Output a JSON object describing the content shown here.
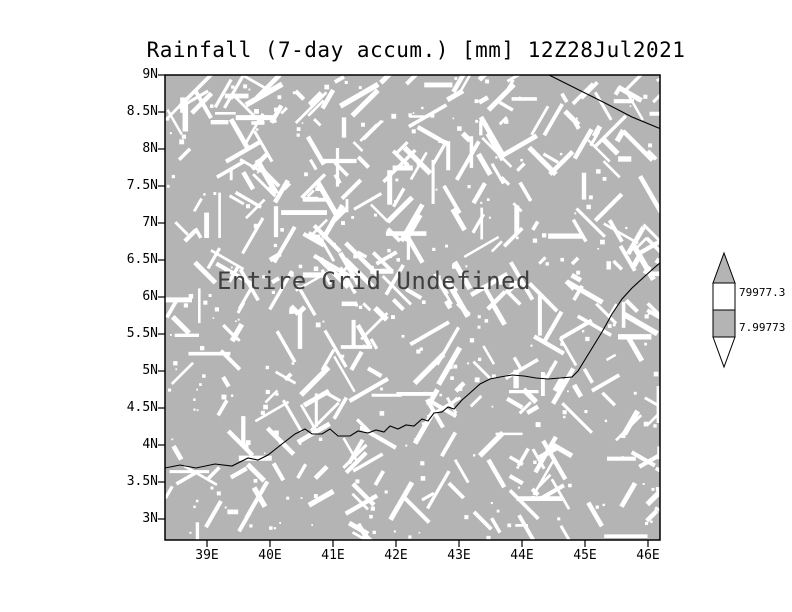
{
  "title": "Rainfall (7-day accum.) [mm] 12Z28Jul2021",
  "plot": {
    "undefined_label": "Entire Grid Undefined"
  },
  "axes": {
    "y_ticks": [
      "9N",
      "8.5N",
      "8N",
      "7.5N",
      "7N",
      "6.5N",
      "6N",
      "5.5N",
      "5N",
      "4.5N",
      "4N",
      "3.5N",
      "3N"
    ],
    "x_ticks": [
      "39E",
      "40E",
      "41E",
      "42E",
      "43E",
      "44E",
      "45E",
      "46E"
    ]
  },
  "colorbar": {
    "labels": [
      "79977.3",
      "7.99773"
    ]
  },
  "colors": {
    "grid_fill": "#b4b4b4",
    "speckle": "#ffffff",
    "coastline": "#000000",
    "undefined_text": "#3f3f3f"
  },
  "chart_data": {
    "type": "heatmap",
    "title": "Rainfall (7-day accum.) [mm] 12Z28Jul2021",
    "variable": "Rainfall (7-day accum.)",
    "units": "mm",
    "valid_time": "12Z28Jul2021",
    "status": "Entire Grid Undefined",
    "x_axis": {
      "ticks": [
        "39E",
        "40E",
        "41E",
        "42E",
        "43E",
        "44E",
        "45E",
        "46E"
      ]
    },
    "y_axis": {
      "ticks": [
        "9N",
        "8.5N",
        "8N",
        "7.5N",
        "7N",
        "6.5N",
        "6N",
        "5.5N",
        "5N",
        "4.5N",
        "4N",
        "3.5N",
        "3N"
      ]
    },
    "colorbar_labels": [
      "79977.3",
      "7.99773"
    ],
    "values": "undefined"
  }
}
